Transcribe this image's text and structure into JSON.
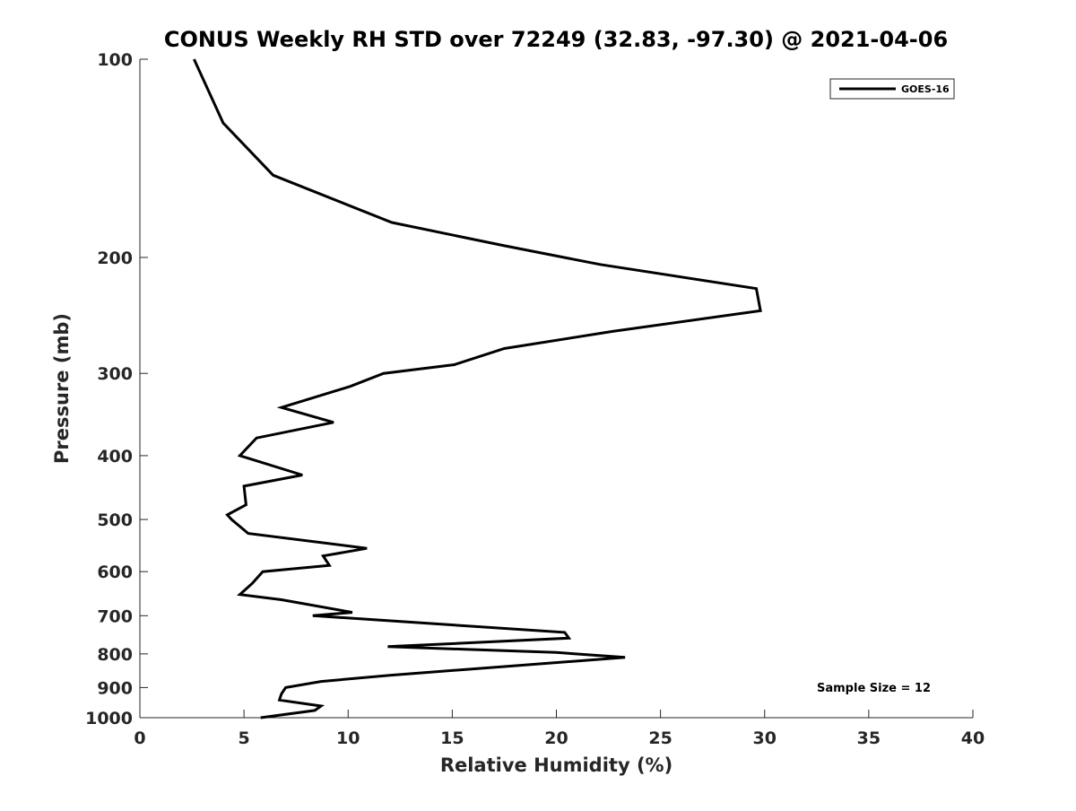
{
  "chart_data": {
    "type": "line",
    "title": "CONUS Weekly RH STD over 72249 (32.83, -97.30) @ 2021-04-06",
    "xlabel": "Relative Humidity (%)",
    "ylabel": "Pressure (mb)",
    "xlim": [
      0,
      40
    ],
    "ylim": [
      100,
      1000
    ],
    "y_scale": "log",
    "y_reversed": true,
    "xticks": [
      0,
      5,
      10,
      15,
      20,
      25,
      30,
      35,
      40
    ],
    "yticks": [
      100,
      200,
      300,
      400,
      500,
      600,
      700,
      800,
      900,
      1000
    ],
    "grid": false,
    "legend": {
      "position": "top-right",
      "entries": [
        "GOES-16"
      ]
    },
    "annotation": "Sample Size = 12",
    "series": [
      {
        "name": "GOES-16",
        "color": "#000000",
        "points": [
          [
            2.6,
            100
          ],
          [
            4.0,
            125
          ],
          [
            6.4,
            150
          ],
          [
            12.1,
            177
          ],
          [
            17.5,
            192
          ],
          [
            22.1,
            205
          ],
          [
            29.6,
            223
          ],
          [
            29.8,
            241
          ],
          [
            22.7,
            259
          ],
          [
            17.5,
            275
          ],
          [
            15.1,
            291
          ],
          [
            11.7,
            300
          ],
          [
            10.1,
            314
          ],
          [
            6.8,
            338
          ],
          [
            9.3,
            356
          ],
          [
            5.6,
            376
          ],
          [
            4.8,
            400
          ],
          [
            7.8,
            428
          ],
          [
            5.0,
            445
          ],
          [
            5.1,
            475
          ],
          [
            4.2,
            492
          ],
          [
            4.4,
            500
          ],
          [
            5.2,
            525
          ],
          [
            10.9,
            553
          ],
          [
            8.8,
            568
          ],
          [
            9.1,
            587
          ],
          [
            5.9,
            600
          ],
          [
            5.4,
            625
          ],
          [
            4.8,
            650
          ],
          [
            6.8,
            662
          ],
          [
            10.2,
            692
          ],
          [
            8.3,
            700
          ],
          [
            20.4,
            742
          ],
          [
            20.6,
            757
          ],
          [
            11.9,
            780
          ],
          [
            20.0,
            796
          ],
          [
            23.3,
            810
          ],
          [
            18.0,
            834
          ],
          [
            12.0,
            862
          ],
          [
            8.7,
            881
          ],
          [
            7.0,
            900
          ],
          [
            6.8,
            920
          ],
          [
            6.7,
            940
          ],
          [
            8.7,
            960
          ],
          [
            8.4,
            975
          ],
          [
            5.8,
            1000
          ]
        ]
      }
    ]
  }
}
